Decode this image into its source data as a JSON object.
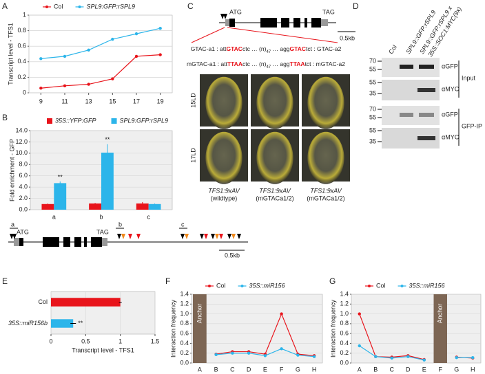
{
  "panel_letters": [
    "A",
    "B",
    "C",
    "D",
    "E",
    "F",
    "G"
  ],
  "chart_data": [
    {
      "type": "line",
      "y_label": "Transcript level - TFS1",
      "x": [
        9,
        11,
        13,
        15,
        17,
        19
      ],
      "xlim": [
        8,
        20
      ],
      "xticks": [
        9,
        11,
        13,
        15,
        17,
        19
      ],
      "ylim": [
        0,
        1
      ],
      "yticks": [
        0,
        0.2,
        0.4,
        0.6,
        0.8,
        1
      ],
      "grid": true,
      "background": "#ffffff",
      "legend": "top",
      "series": [
        {
          "name": "Col",
          "color": "#e8141b",
          "values": [
            0.06,
            0.09,
            0.11,
            0.18,
            0.47,
            0.49
          ]
        },
        {
          "name": "SPL9:GFP:rSPL9",
          "color": "#2cb5ea",
          "values": [
            0.44,
            0.47,
            0.55,
            0.69,
            0.76,
            0.83
          ]
        }
      ]
    },
    {
      "type": "bar",
      "y_label": "Fold enrichment - GFP",
      "categories": [
        "a",
        "b",
        "c"
      ],
      "ylim": [
        0,
        14
      ],
      "yticks": [
        {
          "value": 0,
          "label": "0.0"
        },
        {
          "value": 2,
          "label": "2.0"
        },
        {
          "value": 4,
          "label": "4.0"
        },
        {
          "value": 6,
          "label": "6.0"
        },
        {
          "value": 8,
          "label": "8.0"
        },
        {
          "value": 10,
          "label": "10.0"
        },
        {
          "value": 12,
          "label": "12.0"
        },
        {
          "value": 14,
          "label": "14.0"
        }
      ],
      "grid": true,
      "background": "#efefef",
      "legend": "top",
      "series": [
        {
          "name": "35S::YFP:GFP",
          "color": "#e8141b",
          "values": [
            1,
            1.1,
            1.1
          ],
          "errors": [
            0.1,
            0.1,
            0.25
          ]
        },
        {
          "name": "SPL9:GFP:rSPL9",
          "color": "#2cb5ea",
          "values": [
            4.7,
            10.1,
            1.0
          ],
          "errors": [
            0.3,
            1.5,
            0.1
          ],
          "marks": [
            "**",
            "**",
            null
          ]
        }
      ]
    },
    {
      "type": "barh",
      "x_label": "Transcript level - TFS1",
      "categories": [
        "Col",
        "35S::miR156b"
      ],
      "values": [
        1.0,
        0.32
      ],
      "errors": [
        0.02,
        0.04
      ],
      "marks": [
        null,
        "**"
      ],
      "colors": [
        "#e8141b",
        "#2cb5ea"
      ],
      "xlim": [
        0,
        1.5
      ],
      "xticks": [
        0,
        0.5,
        1,
        1.5
      ],
      "grid": true,
      "background": "#efefef"
    },
    {
      "type": "line",
      "y_label": "Interaction frequency",
      "categories": [
        "A",
        "B",
        "C",
        "D",
        "E",
        "F",
        "G",
        "H"
      ],
      "ylim": [
        0,
        1.4
      ],
      "yticks": [
        {
          "value": 0,
          "label": "0.0"
        },
        {
          "value": 0.2,
          "label": "0.2"
        },
        {
          "value": 0.4,
          "label": "0.4"
        },
        {
          "value": 0.6,
          "label": "0.6"
        },
        {
          "value": 0.8,
          "label": "0.8"
        },
        {
          "value": 1,
          "label": "1.0"
        },
        {
          "value": 1.2,
          "label": "1.2"
        },
        {
          "value": 1.4,
          "label": "1.4"
        }
      ],
      "grid": true,
      "background": "#efefef",
      "legend": "top",
      "anchor": {
        "label": "Anchor",
        "category": "A"
      },
      "series": [
        {
          "name": "Col",
          "color": "#e8141b",
          "values": [
            null,
            0.18,
            0.23,
            0.23,
            0.18,
            1.0,
            0.18,
            0.15
          ]
        },
        {
          "name": "35S::miR156",
          "color": "#2cb5ea",
          "values": [
            null,
            0.17,
            0.2,
            0.2,
            0.15,
            0.29,
            0.16,
            0.13
          ]
        }
      ]
    },
    {
      "type": "line",
      "y_label": "Interaction frequency",
      "categories": [
        "A",
        "B",
        "C",
        "D",
        "E",
        "F",
        "G",
        "H"
      ],
      "ylim": [
        0,
        1.4
      ],
      "yticks": [
        {
          "value": 0,
          "label": "0.0"
        },
        {
          "value": 0.2,
          "label": "0.2"
        },
        {
          "value": 0.4,
          "label": "0.4"
        },
        {
          "value": 0.6,
          "label": "0.6"
        },
        {
          "value": 0.8,
          "label": "0.8"
        },
        {
          "value": 1,
          "label": "1.0"
        },
        {
          "value": 1.2,
          "label": "1.2"
        },
        {
          "value": 1.4,
          "label": "1.4"
        }
      ],
      "grid": true,
      "background": "#efefef",
      "legend": "top",
      "anchor": {
        "label": "Anchor",
        "category": "F"
      },
      "series": [
        {
          "name": "Col",
          "color": "#e8141b",
          "values": [
            1.0,
            0.13,
            0.12,
            0.15,
            0.07,
            null,
            0.12,
            0.1
          ]
        },
        {
          "name": "35S::miR156",
          "color": "#2cb5ea",
          "values": [
            0.35,
            0.13,
            0.1,
            0.13,
            0.06,
            null,
            0.11,
            0.11
          ]
        }
      ]
    }
  ],
  "gene_b": {
    "sites": [
      "a",
      "b",
      "c"
    ],
    "start": "ATG",
    "stop": "TAG",
    "scale": "0.5kb"
  },
  "panel_c": {
    "start": "ATG",
    "stop": "TAG",
    "scale": "0.5kb",
    "sequences": [
      [
        {
          "text": "GTAC-a1 : att"
        },
        {
          "text": "GTAC",
          "highlight": true
        },
        {
          "text": "ctc … (n)"
        },
        {
          "text": "47",
          "sub": true
        },
        {
          "text": " … agg"
        },
        {
          "text": "GTAC",
          "highlight": true
        },
        {
          "text": "tct :    GTAC-a2"
        }
      ],
      [
        {
          "text": "mGTAC-a1 : att"
        },
        {
          "text": "TTAA",
          "highlight": true
        },
        {
          "text": "ctc … (n)"
        },
        {
          "text": "47",
          "sub": true
        },
        {
          "text": " … agg"
        },
        {
          "text": "TTAA",
          "highlight": true
        },
        {
          "text": "tct : mGTAC-a2"
        }
      ]
    ],
    "rows": [
      "15LD",
      "17LD"
    ],
    "columns": [
      [
        "TFS1:9xAV",
        "(wildtype)"
      ],
      [
        "TFS1:9xAV",
        "(mGTACa1/2)"
      ],
      [
        "TFS1:9xAV",
        "(mGTACa1/2)"
      ]
    ]
  },
  "panel_d": {
    "lanes": [
      "Col",
      "SPL9::GFP:rSPL9",
      "SPL9::GFP:rSPL9 x",
      "35S::SOC1:MYC(9x)"
    ],
    "blots": [
      {
        "label": "Input",
        "markers": [
          "70",
          "55",
          "55",
          "35"
        ],
        "antibodies": [
          "αGFP",
          "αMYC"
        ]
      },
      {
        "label": "GFP-IP",
        "markers": [
          "70",
          "55",
          "55",
          "35"
        ],
        "antibodies": [
          "αGFP",
          "αMYC"
        ]
      }
    ]
  }
}
